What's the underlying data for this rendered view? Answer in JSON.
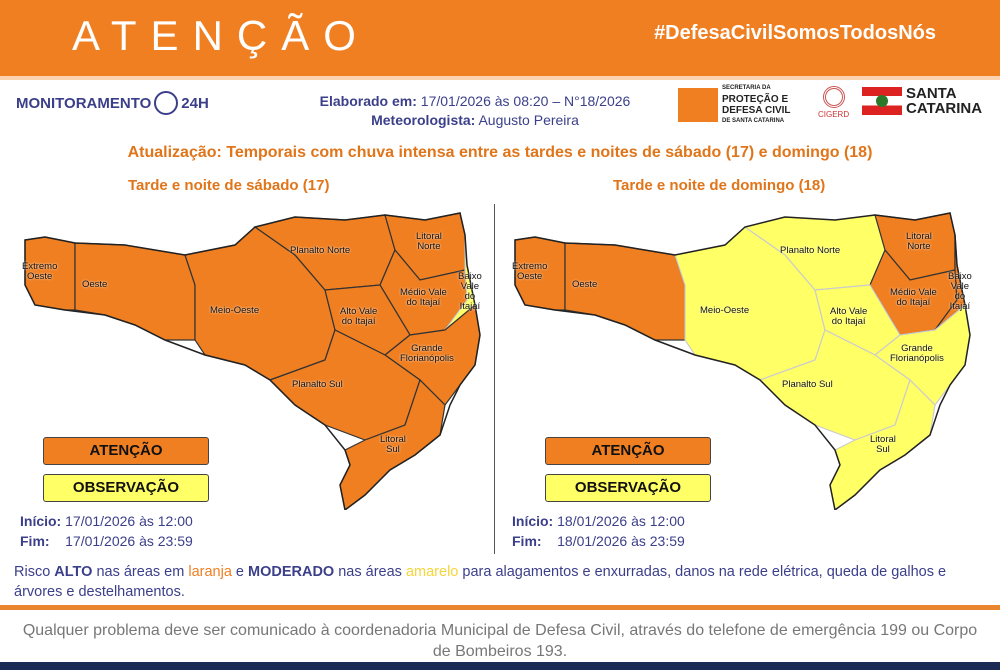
{
  "header": {
    "title": "ATENÇÃO",
    "hashtag": "#DefesaCivilSomosTodosNós"
  },
  "logos": {
    "monitoramento": "MONITORAMENTO",
    "monitoramento_suffix": "24H",
    "defesa_civil": [
      "SECRETARIA DA",
      "PROTEÇÃO E",
      "DEFESA CIVIL",
      "DE SANTA CATARINA"
    ],
    "cigerd": "CIGERD",
    "governo": [
      "SANTA",
      "CATARINA"
    ]
  },
  "info": {
    "elaborado_label": "Elaborado em:",
    "elaborado_value": "17/01/2026 às 08:20 – N°18/2026",
    "meteorologista_label": "Meteorologista:",
    "meteorologista_value": "Augusto Pereira"
  },
  "update_title": "Atualização: Temporais com chuva intensa entre as tardes e noites de sábado (17) e domingo (18)",
  "colors": {
    "alto": "#f07f22",
    "moderado": "#ffff66"
  },
  "regions": [
    "Extremo Oeste",
    "Oeste",
    "Meio-Oeste",
    "Planalto Norte",
    "Litoral Norte",
    "Médio Vale do Itajaí",
    "Alto Vale do Itajaí",
    "Baixo Vale do Itajaí",
    "Grande Florianópolis",
    "Planalto Sul",
    "Litoral Sul"
  ],
  "panels": [
    {
      "subtitle": "Tarde e noite de sábado (17)",
      "legend_alto": "ATENÇÃO",
      "legend_moderado": "OBSERVAÇÃO",
      "inicio_label": "Início:",
      "inicio": "17/01/2026 às 12:00",
      "fim_label": "Fim:",
      "fim": "17/01/2026 às 23:59",
      "orange_regions": [
        "Extremo Oeste",
        "Oeste",
        "Meio-Oeste",
        "Planalto Norte",
        "Litoral Norte",
        "Médio Vale do Itajaí",
        "Alto Vale do Itajaí",
        "Grande Florianópolis",
        "Planalto Sul",
        "Litoral Sul"
      ],
      "yellow_regions": [
        "Baixo Vale do Itajaí"
      ]
    },
    {
      "subtitle": "Tarde e noite de domingo (18)",
      "legend_alto": "ATENÇÃO",
      "legend_moderado": "OBSERVAÇÃO",
      "inicio_label": "Início:",
      "inicio": "18/01/2026 às 12:00",
      "fim_label": "Fim:",
      "fim": "18/01/2026 às 23:59",
      "orange_regions": [
        "Extremo Oeste",
        "Oeste",
        "Litoral Norte",
        "Médio Vale do Itajaí",
        "Baixo Vale do Itajaí"
      ],
      "yellow_regions": [
        "Meio-Oeste",
        "Planalto Norte",
        "Alto Vale do Itajaí",
        "Grande Florianópolis",
        "Planalto Sul",
        "Litoral Sul"
      ]
    }
  ],
  "risk": {
    "p1": "Risco ",
    "alto": "ALTO",
    "p2": " nas áreas em ",
    "laranja": "laranja",
    "p3": " e ",
    "moderado": "MODERADO",
    "p4": " nas áreas ",
    "amarelo": "amarelo",
    "p5": " para alagamentos e enxurradas, danos na rede elétrica, queda de galhos e árvores e destelhamentos."
  },
  "footer": "Qualquer problema deve ser comunicado à coordenadoria Municipal de Defesa Civil, através do telefone de emergência 199 ou Corpo de Bombeiros 193."
}
